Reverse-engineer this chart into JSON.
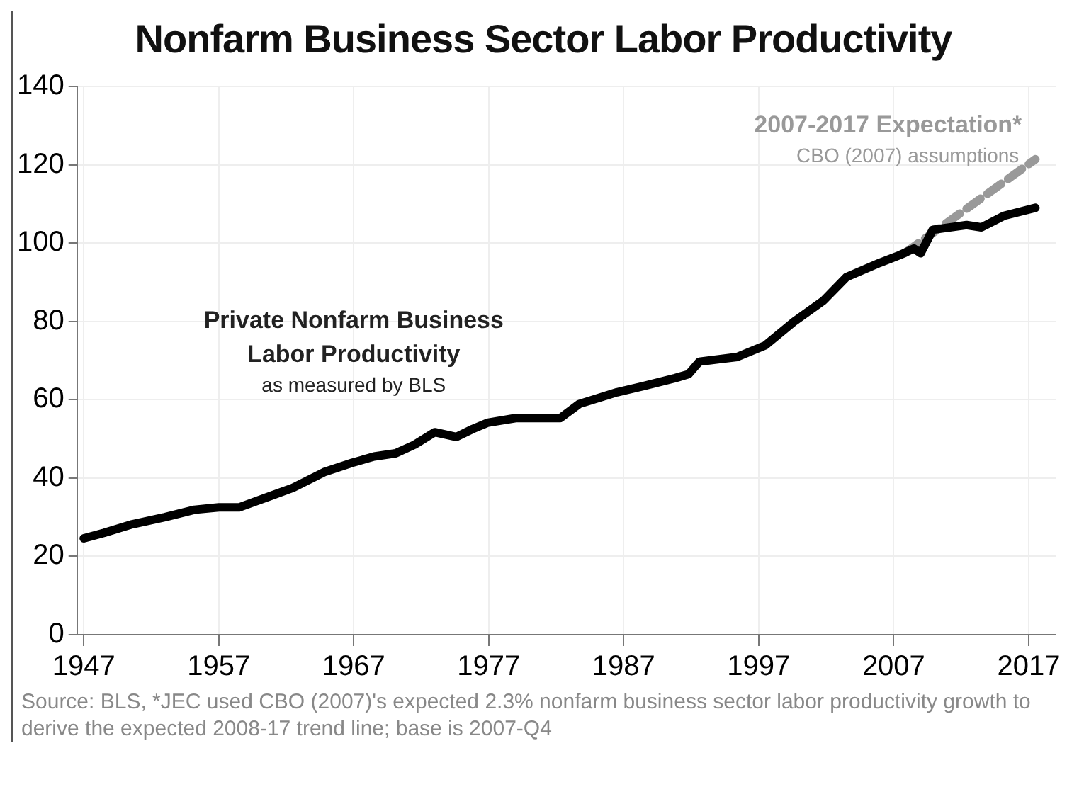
{
  "chart_data": {
    "type": "line",
    "title": "Nonfarm Business Sector Labor Productivity",
    "series": [
      {
        "name": "Private Nonfarm Business Labor Productivity",
        "color": "#000000",
        "x": [
          1947,
          1948.5,
          1950.6,
          1953,
          1955.2,
          1957,
          1958.5,
          1960.9,
          1962.5,
          1964.8,
          1966.9,
          1968.5,
          1970.1,
          1971.5,
          1973,
          1974.6,
          1975.8,
          1976.9,
          1979,
          1980.5,
          1982.3,
          1983.7,
          1986.5,
          1988.5,
          1990.8,
          1991.8,
          1992.6,
          1995.4,
          1997.5,
          1999.6,
          2001.8,
          2003.5,
          2006,
          2007.5,
          2008.5,
          2009,
          2009.9,
          2012.4,
          2013.5,
          2015.2,
          2017.5
        ],
        "values": [
          24.6,
          26,
          28.2,
          30,
          31.9,
          32.5,
          32.5,
          35.5,
          37.5,
          41.5,
          43.9,
          45.5,
          46.3,
          48.5,
          51.7,
          50.5,
          52.5,
          54.1,
          55.3,
          55.3,
          55.3,
          58.9,
          61.9,
          63.5,
          65.5,
          66.5,
          69.7,
          70.9,
          73.9,
          79.9,
          85.3,
          91.3,
          95,
          97,
          98.6,
          97.4,
          103.4,
          104.6,
          104,
          107,
          109
        ]
      },
      {
        "name": "2007-2017 Expectation*",
        "color": "#999999",
        "line_style": "dashed",
        "x": [
          2007.8,
          2017.5
        ],
        "values": [
          97.4,
          121.4
        ]
      }
    ],
    "xlim": [
      1946.5,
      2019
    ],
    "xticks": [
      1947,
      1957,
      1967,
      1977,
      1987,
      1997,
      2007,
      2017
    ],
    "ylim": [
      0,
      140
    ],
    "yticks": [
      0,
      20,
      40,
      60,
      80,
      100,
      120,
      140
    ],
    "grid": true,
    "legend": false,
    "annotations": [
      "as measured by BLS",
      "CBO (2007) assumptions",
      "Source: BLS, *JEC used CBO (2007)'s expected 2.3% nonfarm business sector labor productivity growth to derive the expected 2008-17 trend line; base is 2007-Q4"
    ]
  }
}
